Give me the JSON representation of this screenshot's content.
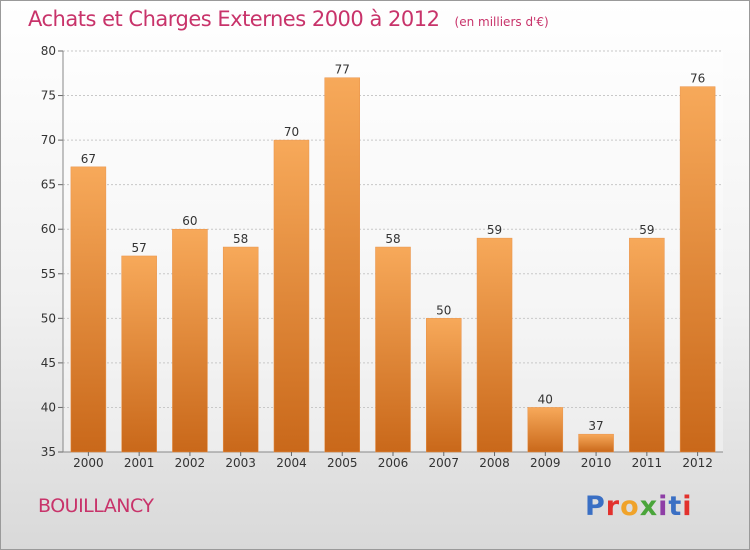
{
  "header": {
    "title": "Achats et Charges Externes 2000 à 2012",
    "subtitle": "(en milliers d'€)"
  },
  "footer": {
    "commune": "BOUILLANCY",
    "logo_text": "Proxiti",
    "logo_colors": [
      "#3a6fc4",
      "#e2312d",
      "#f0a32a",
      "#4aa53a",
      "#8e3ea6",
      "#3a6fc4",
      "#e2312d"
    ]
  },
  "colors": {
    "bar_top": "#f7a95a",
    "bar_bottom": "#c9681a",
    "grid": "#c8c8c8",
    "axis_text": "#333333"
  },
  "chart_data": {
    "type": "bar",
    "categories": [
      "2000",
      "2001",
      "2002",
      "2003",
      "2004",
      "2005",
      "2006",
      "2007",
      "2008",
      "2009",
      "2010",
      "2011",
      "2012"
    ],
    "values": [
      67,
      57,
      60,
      58,
      70,
      77,
      58,
      50,
      59,
      40,
      37,
      59,
      76
    ],
    "ylim": [
      35,
      80
    ],
    "yticks": [
      35,
      40,
      45,
      50,
      55,
      60,
      65,
      70,
      75,
      80
    ],
    "grid": true
  }
}
